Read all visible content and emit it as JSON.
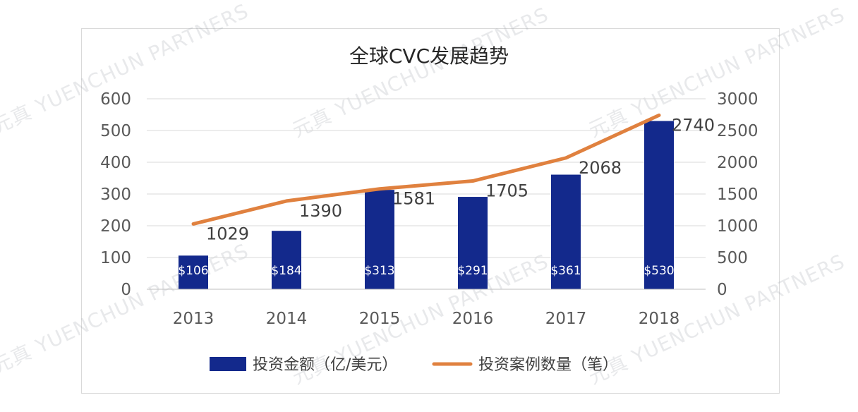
{
  "watermark": "元真 YUENCHUN PARTNERS",
  "chart_data": {
    "type": "bar",
    "title": "全球CVC发展趋势",
    "categories": [
      "2013",
      "2014",
      "2015",
      "2016",
      "2017",
      "2018"
    ],
    "series": [
      {
        "name": "投资金额（亿/美元）",
        "kind": "bar",
        "axis": "left",
        "color": "#13298c",
        "values": [
          106,
          184,
          313,
          291,
          361,
          530
        ],
        "data_labels": [
          "$106",
          "$184",
          "$313",
          "$291",
          "$361",
          "$530"
        ]
      },
      {
        "name": "投资案例数量（笔）",
        "kind": "line",
        "axis": "right",
        "color": "#e0813f",
        "values": [
          1029,
          1390,
          1581,
          1705,
          2068,
          2740
        ],
        "data_labels": [
          "1029",
          "1390",
          "1581",
          "1705",
          "2068",
          "2740"
        ]
      }
    ],
    "y_left": {
      "ylim": [
        0,
        600
      ],
      "ticks": [
        "0",
        "100",
        "200",
        "300",
        "400",
        "500",
        "600"
      ]
    },
    "y_right": {
      "ylim": [
        0,
        3000
      ],
      "ticks": [
        "0",
        "500",
        "1000",
        "1500",
        "2000",
        "2500",
        "3000"
      ]
    },
    "grid": true,
    "legend": "bottom"
  }
}
